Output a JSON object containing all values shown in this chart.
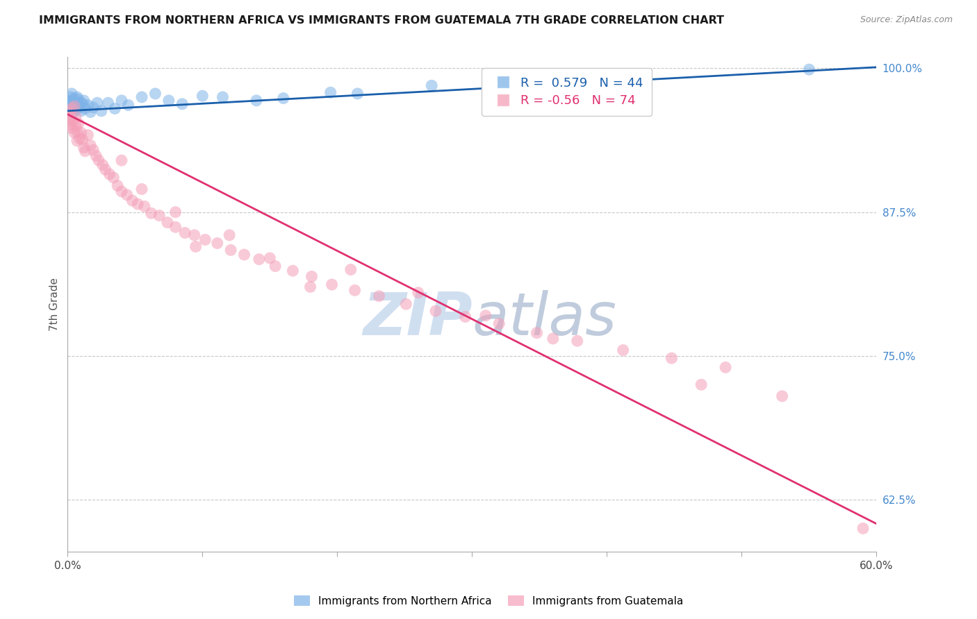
{
  "title": "IMMIGRANTS FROM NORTHERN AFRICA VS IMMIGRANTS FROM GUATEMALA 7TH GRADE CORRELATION CHART",
  "source": "Source: ZipAtlas.com",
  "ylabel": "7th Grade",
  "xlim": [
    0.0,
    0.6
  ],
  "ylim": [
    0.58,
    1.01
  ],
  "xticks": [
    0.0,
    0.1,
    0.2,
    0.3,
    0.4,
    0.5,
    0.6
  ],
  "xticklabels": [
    "0.0%",
    "",
    "",
    "",
    "",
    "",
    "60.0%"
  ],
  "yticks_right": [
    1.0,
    0.875,
    0.75,
    0.625
  ],
  "ytick_right_labels": [
    "100.0%",
    "87.5%",
    "75.0%",
    "62.5%"
  ],
  "blue_R": 0.579,
  "blue_N": 44,
  "pink_R": -0.56,
  "pink_N": 74,
  "blue_color": "#7EB3E8",
  "pink_color": "#F4A0B8",
  "blue_line_color": "#1A5FAB",
  "pink_line_color": "#E03070",
  "watermark_color": "#D0DFF0",
  "legend_label_blue": "Immigrants from Northern Africa",
  "legend_label_pink": "Immigrants from Guatemala",
  "blue_scatter_x": [
    0.001,
    0.001,
    0.002,
    0.002,
    0.002,
    0.003,
    0.003,
    0.003,
    0.004,
    0.004,
    0.005,
    0.005,
    0.006,
    0.006,
    0.007,
    0.007,
    0.008,
    0.009,
    0.01,
    0.01,
    0.011,
    0.012,
    0.013,
    0.015,
    0.017,
    0.019,
    0.022,
    0.025,
    0.03,
    0.035,
    0.04,
    0.045,
    0.055,
    0.065,
    0.075,
    0.085,
    0.1,
    0.115,
    0.14,
    0.16,
    0.195,
    0.215,
    0.27,
    0.55
  ],
  "blue_scatter_y": [
    0.971,
    0.966,
    0.975,
    0.969,
    0.963,
    0.978,
    0.972,
    0.965,
    0.968,
    0.961,
    0.974,
    0.967,
    0.971,
    0.964,
    0.975,
    0.968,
    0.973,
    0.966,
    0.97,
    0.963,
    0.969,
    0.972,
    0.965,
    0.968,
    0.962,
    0.966,
    0.97,
    0.963,
    0.97,
    0.965,
    0.972,
    0.968,
    0.975,
    0.978,
    0.972,
    0.969,
    0.976,
    0.975,
    0.972,
    0.974,
    0.979,
    0.978,
    0.985,
    0.999
  ],
  "pink_scatter_x": [
    0.001,
    0.001,
    0.002,
    0.002,
    0.003,
    0.003,
    0.004,
    0.005,
    0.005,
    0.006,
    0.006,
    0.007,
    0.007,
    0.008,
    0.009,
    0.01,
    0.011,
    0.012,
    0.013,
    0.015,
    0.017,
    0.019,
    0.021,
    0.023,
    0.026,
    0.028,
    0.031,
    0.034,
    0.037,
    0.04,
    0.044,
    0.048,
    0.052,
    0.057,
    0.062,
    0.068,
    0.074,
    0.08,
    0.087,
    0.094,
    0.102,
    0.111,
    0.121,
    0.131,
    0.142,
    0.154,
    0.167,
    0.181,
    0.196,
    0.213,
    0.231,
    0.251,
    0.273,
    0.295,
    0.32,
    0.348,
    0.378,
    0.412,
    0.448,
    0.488,
    0.21,
    0.26,
    0.31,
    0.36,
    0.095,
    0.04,
    0.055,
    0.08,
    0.12,
    0.15,
    0.18,
    0.53,
    0.47,
    0.59
  ],
  "pink_scatter_y": [
    0.962,
    0.956,
    0.958,
    0.951,
    0.965,
    0.948,
    0.954,
    0.967,
    0.944,
    0.95,
    0.958,
    0.945,
    0.937,
    0.952,
    0.939,
    0.944,
    0.938,
    0.931,
    0.928,
    0.942,
    0.933,
    0.929,
    0.924,
    0.92,
    0.916,
    0.912,
    0.908,
    0.905,
    0.898,
    0.893,
    0.89,
    0.885,
    0.882,
    0.88,
    0.874,
    0.872,
    0.866,
    0.862,
    0.857,
    0.855,
    0.851,
    0.848,
    0.842,
    0.838,
    0.834,
    0.828,
    0.824,
    0.819,
    0.812,
    0.807,
    0.802,
    0.795,
    0.789,
    0.784,
    0.778,
    0.77,
    0.763,
    0.755,
    0.748,
    0.74,
    0.825,
    0.805,
    0.785,
    0.765,
    0.845,
    0.92,
    0.895,
    0.875,
    0.855,
    0.835,
    0.81,
    0.715,
    0.725,
    0.6
  ],
  "blue_line_x": [
    0.0,
    0.6
  ],
  "blue_line_y": [
    0.963,
    1.001
  ],
  "pink_line_x": [
    0.0,
    0.6
  ],
  "pink_line_y": [
    0.96,
    0.604
  ]
}
